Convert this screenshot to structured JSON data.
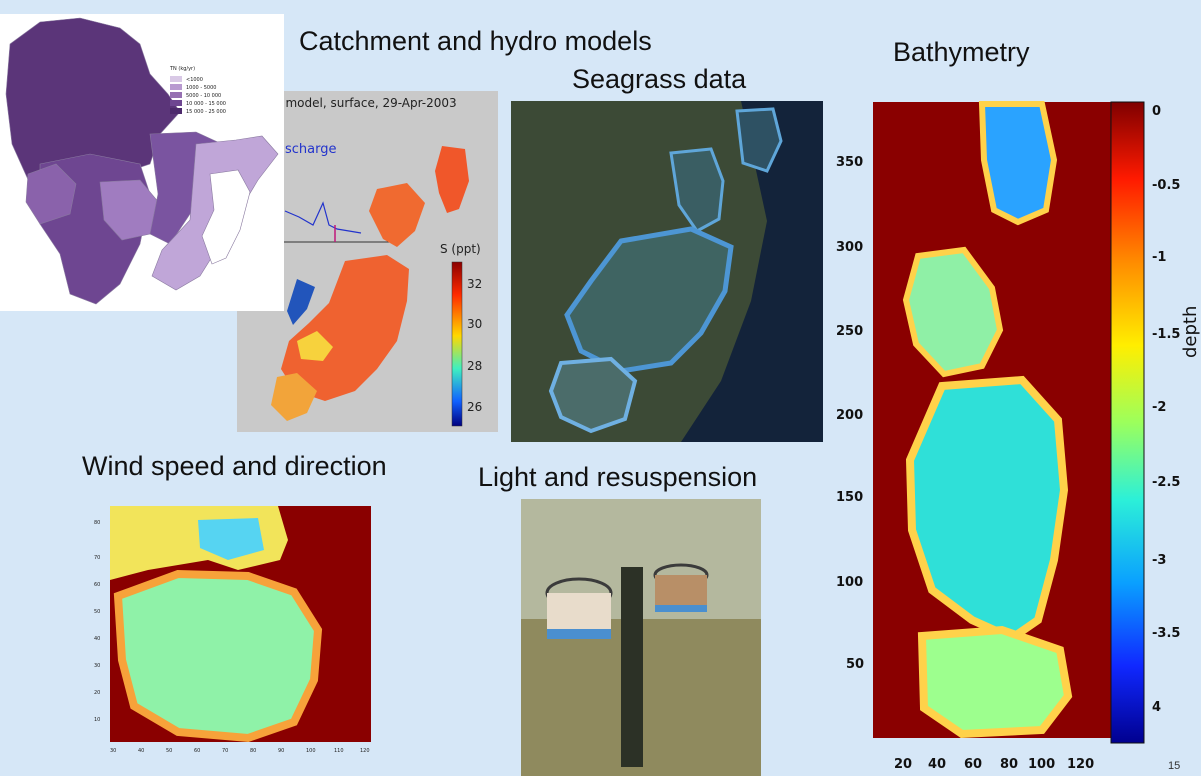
{
  "headings": {
    "catchment": "Catchment and hydro models",
    "seagrass": "Seagrass data",
    "bathymetry": "Bathymetry",
    "wind": "Wind speed and direction",
    "light": "Light and resuspension"
  },
  "catchment_map": {
    "legend_title": "TN (kg/yr)",
    "legend_items": [
      "<1000",
      "1000 - 5000",
      "5000 - 10 000",
      "10 000 - 15 000",
      "15 000 - 25 000"
    ],
    "colors": [
      "#d9c9e6",
      "#b89ad0",
      "#9670b2",
      "#6e4691",
      "#4d2a6c"
    ]
  },
  "hydro_model": {
    "title": ") model, surface, 29-Apr-2003",
    "discharge_label": "scharge",
    "colorbar_label": "S (ppt)",
    "colorbar_ticks": [
      "32",
      "30",
      "28",
      "26"
    ]
  },
  "bathymetry_chart": {
    "y_ticks": [
      "350",
      "300",
      "250",
      "200",
      "150",
      "100",
      "50"
    ],
    "x_ticks": [
      "20",
      "40",
      "60",
      "80",
      "100",
      "120"
    ],
    "colorbar_ticks": [
      "0",
      "-0.5",
      "-1",
      "-1.5",
      "-2",
      "-2.5",
      "-3",
      "-3.5",
      "4"
    ],
    "colorbar_label": "depth"
  },
  "wind_chart": {
    "y_ticks": [
      "80",
      "70",
      "60",
      "50",
      "40",
      "30",
      "20",
      "10"
    ],
    "x_ticks": [
      "30",
      "40",
      "50",
      "60",
      "70",
      "80",
      "90",
      "100",
      "110",
      "120"
    ]
  },
  "page_number": "15"
}
